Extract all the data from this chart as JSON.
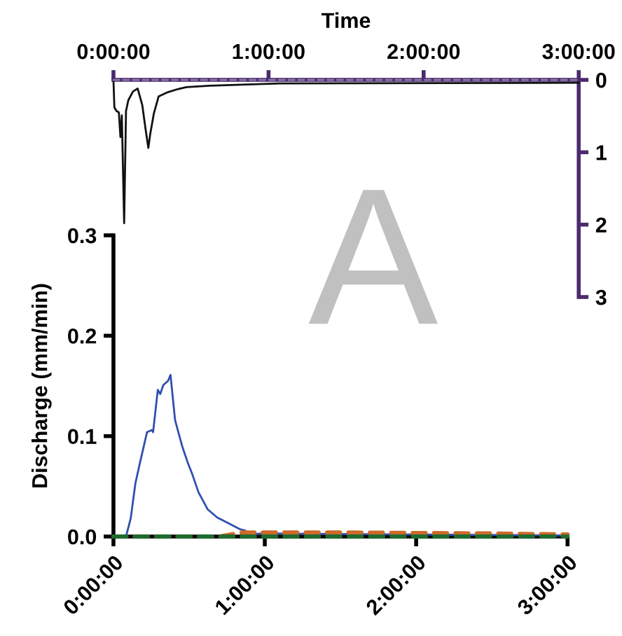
{
  "chart_data": [
    {
      "type": "line",
      "xlabel": "Time",
      "xlim": [
        0,
        3
      ],
      "xticks": [
        {
          "value": 0,
          "label": "0:00:00"
        },
        {
          "value": 1,
          "label": "1:00:00"
        },
        {
          "value": 2,
          "label": "2:00:00"
        },
        {
          "value": 3,
          "label": "3:00:00"
        }
      ],
      "ylim": [
        3,
        0
      ],
      "yticks": [
        0,
        1,
        2,
        3
      ],
      "legend": false,
      "series": [
        {
          "color": "#111111",
          "line_style": "solid",
          "x": [
            0,
            0.006,
            0.02,
            0.035,
            0.045,
            0.054,
            0.069,
            0.081,
            0.096,
            0.126,
            0.156,
            0.186,
            0.207,
            0.225,
            0.237,
            0.261,
            0.291,
            0.351,
            0.411,
            0.471,
            0.62,
            1.07,
            3.0
          ],
          "values": [
            0,
            0.38,
            0.43,
            0.45,
            0.79,
            0.49,
            1.98,
            0.43,
            0.28,
            0.16,
            0.12,
            0.35,
            0.68,
            0.94,
            0.75,
            0.46,
            0.23,
            0.17,
            0.13,
            0.1,
            0.08,
            0.05,
            0.04
          ]
        },
        {
          "color": "#8a7aa8",
          "line_style": "dashed",
          "x": [
            0,
            3
          ],
          "values": [
            0,
            0
          ]
        }
      ]
    },
    {
      "type": "line",
      "ylabel": "Discharge (mm/min)",
      "xlim": [
        0,
        3
      ],
      "xticks": [
        {
          "value": 0,
          "label": "0:00:00"
        },
        {
          "value": 1,
          "label": "1:00:00"
        },
        {
          "value": 2,
          "label": "2:00:00"
        },
        {
          "value": 3,
          "label": "3:00:00"
        }
      ],
      "ylim": [
        0,
        0.3
      ],
      "yticks": [
        {
          "value": 0,
          "label": "0.0"
        },
        0.1,
        0.2,
        0.3
      ],
      "grid": false,
      "legend": false,
      "annotations": [
        "A"
      ],
      "series": [
        {
          "color": "#2f4fb0",
          "line_style": "solid",
          "x": [
            0,
            0.083,
            0.114,
            0.145,
            0.176,
            0.222,
            0.253,
            0.262,
            0.293,
            0.309,
            0.33,
            0.361,
            0.377,
            0.407,
            0.454,
            0.49,
            0.521,
            0.562,
            0.623,
            0.685,
            0.762,
            0.84,
            0.87,
            0.886,
            0.98,
            2.0,
            3.0
          ],
          "values": [
            0,
            0,
            0.018,
            0.053,
            0.074,
            0.104,
            0.106,
            0.104,
            0.146,
            0.142,
            0.151,
            0.155,
            0.161,
            0.116,
            0.09,
            0.074,
            0.062,
            0.044,
            0.027,
            0.019,
            0.013,
            0.007,
            0.006,
            0.002,
            0.003,
            0.002,
            0.001
          ]
        },
        {
          "color": "#cc6a2a",
          "line_style": "dashed",
          "x": [
            0,
            0.7,
            0.85,
            1.5,
            2.5,
            3.0
          ],
          "values": [
            0,
            0,
            0.004,
            0.004,
            0.003,
            0.002
          ]
        },
        {
          "color": "#1e6b30",
          "line_style": "dashed",
          "x": [
            0,
            3.0
          ],
          "values": [
            0,
            0
          ]
        }
      ]
    }
  ]
}
